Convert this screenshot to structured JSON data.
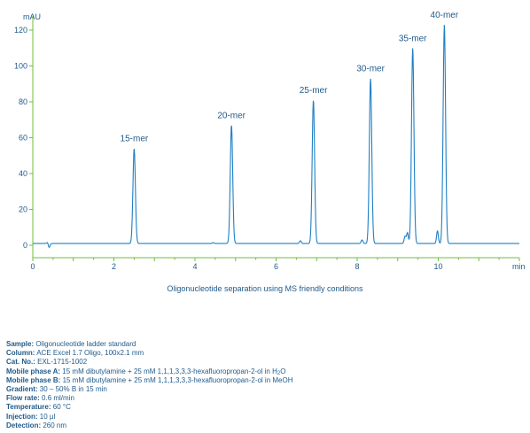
{
  "chart_data": {
    "type": "line",
    "title": "",
    "caption": "Oligonucleotide separation using MS friendly conditions",
    "ylabel_unit": "mAU",
    "xlabel_unit": "min",
    "xlim": [
      0,
      12
    ],
    "ylim": [
      -8,
      128
    ],
    "xticks": [
      0,
      2,
      4,
      6,
      8,
      10
    ],
    "yticks": [
      0,
      20,
      40,
      60,
      80,
      100,
      120
    ],
    "grid": false,
    "baseline": 1,
    "peaks": [
      {
        "label": "15-mer",
        "x": 2.5,
        "y": 54
      },
      {
        "label": "20-mer",
        "x": 4.9,
        "y": 67
      },
      {
        "label": "25-mer",
        "x": 6.92,
        "y": 81
      },
      {
        "label": "30-mer",
        "x": 8.33,
        "y": 93
      },
      {
        "label": "35-mer",
        "x": 9.37,
        "y": 110
      },
      {
        "label": "40-mer",
        "x": 10.15,
        "y": 123
      }
    ],
    "minor_peaks": [
      {
        "x": 0.37,
        "y": 2
      },
      {
        "x": 0.4,
        "y": -1.5
      },
      {
        "x": 4.45,
        "y": 1.5
      },
      {
        "x": 6.6,
        "y": 2.5
      },
      {
        "x": 8.12,
        "y": 3
      },
      {
        "x": 9.18,
        "y": 5
      },
      {
        "x": 9.24,
        "y": 7
      },
      {
        "x": 9.98,
        "y": 8
      }
    ]
  },
  "details": [
    {
      "key": "Sample:",
      "value": "Oligonucleotide ladder standard"
    },
    {
      "key": "Column:",
      "value": "ACE Excel 1.7 Oligo, 100x2.1 mm"
    },
    {
      "key": "Cat. No.:",
      "value": "EXL-1715-1002"
    },
    {
      "key": "Mobile phase A:",
      "value": "15 mM dibutylamine + 25 mM 1,1,1,3,3,3-hexafluoropropan-2-ol in H",
      "sub": "2",
      "tail": "O"
    },
    {
      "key": "Mobile phase B:",
      "value": "15 mM dibutylamine + 25 mM 1,1,1,3,3,3-hexafluoropropan-2-ol in MeOH"
    },
    {
      "key": "Gradient:",
      "value": "30 – 50% B in 15 min"
    },
    {
      "key": "Flow rate:",
      "value": "0.6 ml/min"
    },
    {
      "key": "Temperature:",
      "value": "60 °C"
    },
    {
      "key": "Injection:",
      "value": "10 µl"
    },
    {
      "key": "Detection:",
      "value": "260 nm"
    }
  ]
}
